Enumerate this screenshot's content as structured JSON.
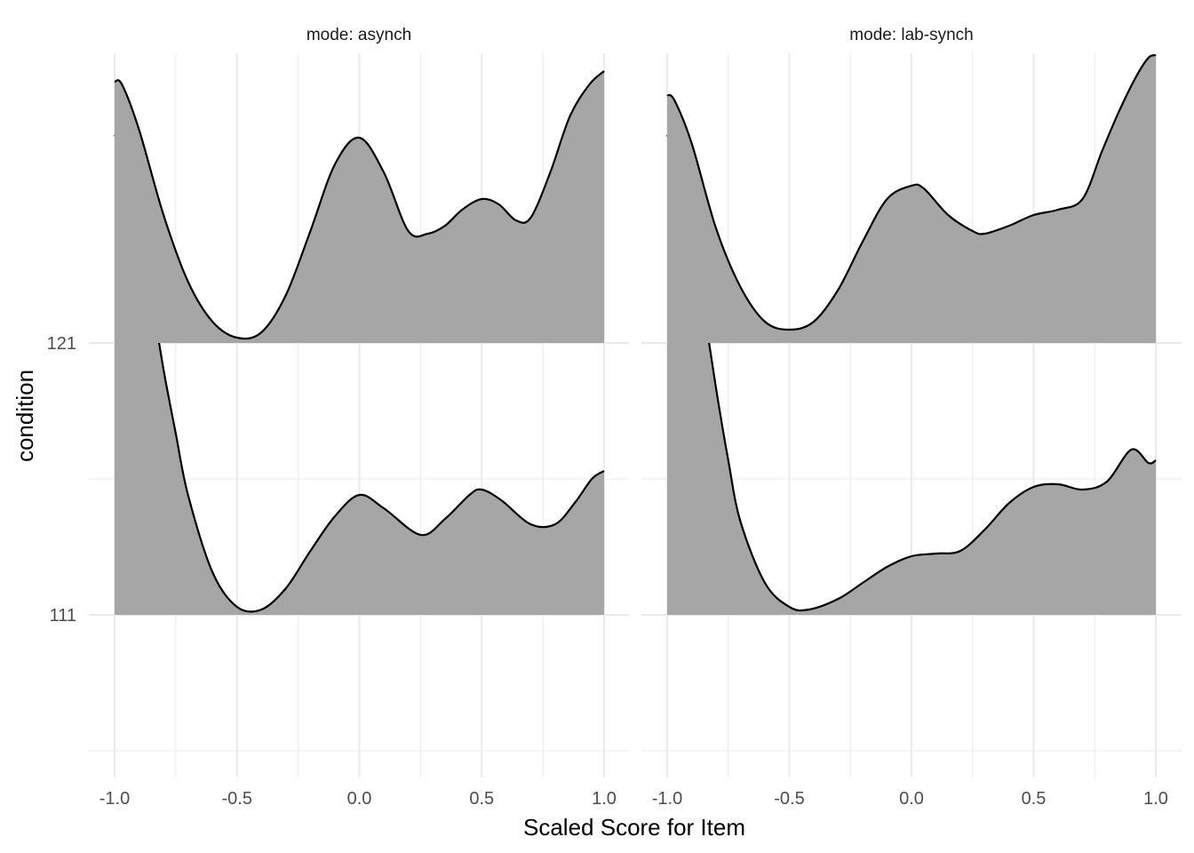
{
  "chart_data": {
    "type": "ridgeline",
    "xlabel": "Scaled Score for Item",
    "ylabel": "condition",
    "xlim": [
      -1.0,
      1.0
    ],
    "x_ticks": [
      "-1.0",
      "-0.5",
      "0.0",
      "0.5",
      "1.0"
    ],
    "y_categories": [
      "111",
      "121"
    ],
    "fill_color": "#a6a6a6",
    "line_color": "#000000",
    "grid": true,
    "facets": [
      {
        "label": "mode: asynch",
        "series": [
          {
            "category": "121",
            "x": [
              -1.0,
              -0.97,
              -0.9,
              -0.8,
              -0.7,
              -0.6,
              -0.5,
              -0.4,
              -0.3,
              -0.2,
              -0.1,
              0.0,
              0.1,
              0.2,
              0.28,
              0.35,
              0.42,
              0.5,
              0.57,
              0.64,
              0.7,
              0.78,
              0.86,
              0.94,
              1.0
            ],
            "density": [
              0.98,
              0.97,
              0.8,
              0.48,
              0.23,
              0.08,
              0.02,
              0.04,
              0.18,
              0.42,
              0.67,
              0.77,
              0.64,
              0.42,
              0.41,
              0.44,
              0.5,
              0.54,
              0.52,
              0.46,
              0.47,
              0.64,
              0.85,
              0.97,
              1.02
            ]
          },
          {
            "category": "111",
            "x": [
              -1.0,
              -0.97,
              -0.9,
              -0.85,
              -0.8,
              -0.75,
              -0.7,
              -0.6,
              -0.5,
              -0.4,
              -0.3,
              -0.2,
              -0.1,
              0.0,
              0.1,
              0.25,
              0.35,
              0.45,
              0.5,
              0.58,
              0.7,
              0.8,
              0.88,
              0.95,
              1.0
            ],
            "density": [
              1.8,
              1.75,
              1.45,
              1.2,
              0.92,
              0.68,
              0.45,
              0.16,
              0.03,
              0.02,
              0.1,
              0.24,
              0.37,
              0.45,
              0.4,
              0.3,
              0.36,
              0.45,
              0.47,
              0.43,
              0.34,
              0.34,
              0.42,
              0.51,
              0.54
            ]
          }
        ]
      },
      {
        "label": "mode: lab-synch",
        "series": [
          {
            "category": "121",
            "x": [
              -1.0,
              -0.97,
              -0.9,
              -0.8,
              -0.7,
              -0.6,
              -0.5,
              -0.4,
              -0.3,
              -0.2,
              -0.1,
              0.0,
              0.05,
              0.15,
              0.25,
              0.3,
              0.4,
              0.5,
              0.6,
              0.7,
              0.78,
              0.85,
              0.92,
              0.97,
              1.0
            ],
            "density": [
              0.93,
              0.91,
              0.75,
              0.43,
              0.21,
              0.08,
              0.05,
              0.08,
              0.2,
              0.38,
              0.54,
              0.59,
              0.58,
              0.48,
              0.42,
              0.41,
              0.44,
              0.48,
              0.5,
              0.54,
              0.72,
              0.87,
              1.0,
              1.07,
              1.08
            ]
          },
          {
            "category": "111",
            "x": [
              -1.0,
              -0.97,
              -0.9,
              -0.85,
              -0.8,
              -0.75,
              -0.7,
              -0.6,
              -0.5,
              -0.42,
              -0.3,
              -0.2,
              -0.1,
              0.0,
              0.1,
              0.2,
              0.3,
              0.4,
              0.5,
              0.6,
              0.7,
              0.8,
              0.9,
              0.97,
              1.0
            ],
            "density": [
              1.8,
              1.74,
              1.45,
              1.15,
              0.85,
              0.58,
              0.35,
              0.12,
              0.03,
              0.02,
              0.06,
              0.12,
              0.18,
              0.22,
              0.23,
              0.24,
              0.32,
              0.42,
              0.48,
              0.49,
              0.47,
              0.5,
              0.62,
              0.57,
              0.58
            ]
          }
        ]
      }
    ]
  }
}
